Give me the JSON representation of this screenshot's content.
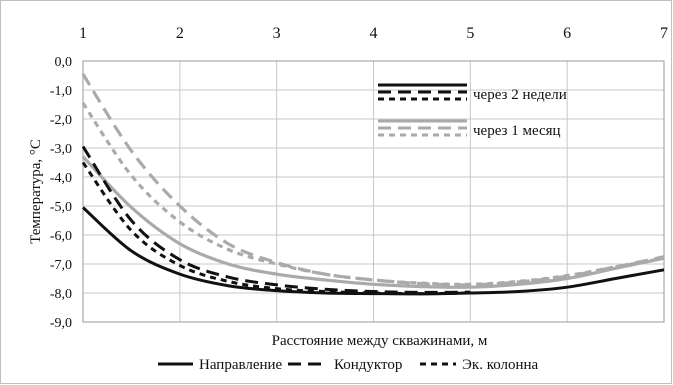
{
  "chart_data": {
    "type": "line",
    "title": "",
    "xlabel": "Расстояние между скважинами, м",
    "ylabel": "Температура, °С",
    "x_axis_position": "top",
    "xlim": [
      1,
      7
    ],
    "ylim": [
      -9,
      0
    ],
    "x_ticks": [
      "1",
      "2",
      "3",
      "4",
      "5",
      "6",
      "7"
    ],
    "y_ticks": [
      "0,0",
      "-1,0",
      "-2,0",
      "-3,0",
      "-4,0",
      "-5,0",
      "-6,0",
      "-7,0",
      "-8,0",
      "-9,0"
    ],
    "grid": true,
    "legend_bottom": [
      "Направление",
      "Кондуктор",
      "Эк. колонна"
    ],
    "legend_inset": [
      "через 2 недели",
      "через 1 месяц"
    ],
    "legend_inset_position": "top-center",
    "series": [
      {
        "name": "Направление",
        "group": "через 2 недели",
        "color": "#111111",
        "dash": "solid",
        "x": [
          1,
          1.5,
          2,
          2.5,
          3,
          3.5,
          4,
          4.5,
          5,
          5.5,
          6,
          6.5,
          7
        ],
        "y": [
          -5.05,
          -6.55,
          -7.35,
          -7.75,
          -7.92,
          -8.0,
          -8.02,
          -8.03,
          -8.0,
          -7.95,
          -7.8,
          -7.5,
          -7.2
        ]
      },
      {
        "name": "Кондуктор",
        "group": "через 2 недели",
        "color": "#111111",
        "dash": "long",
        "x": [
          1,
          1.5,
          2,
          2.5,
          3,
          3.5,
          4,
          4.5,
          5
        ],
        "y": [
          -2.95,
          -5.5,
          -6.85,
          -7.45,
          -7.72,
          -7.87,
          -7.95,
          -7.98,
          -7.97
        ]
      },
      {
        "name": "Эк. колонна",
        "group": "через 2 недели",
        "color": "#111111",
        "dash": "short",
        "x": [
          1,
          1.5,
          2,
          2.5,
          3,
          3.5,
          4,
          4.5,
          5
        ],
        "y": [
          -3.5,
          -5.85,
          -7.05,
          -7.6,
          -7.85,
          -7.95,
          -8.0,
          -8.02,
          -8.0
        ]
      },
      {
        "name": "Направление",
        "group": "через 1 месяц",
        "color": "#aaaaaa",
        "dash": "solid",
        "x": [
          1,
          1.5,
          2,
          2.5,
          3,
          3.5,
          4,
          4.5,
          5,
          5.5,
          6,
          6.5,
          7
        ],
        "y": [
          -3.3,
          -5.05,
          -6.3,
          -7.0,
          -7.35,
          -7.55,
          -7.7,
          -7.78,
          -7.8,
          -7.7,
          -7.5,
          -7.15,
          -6.8
        ]
      },
      {
        "name": "Кондуктор",
        "group": "через 1 месяц",
        "color": "#aaaaaa",
        "dash": "long",
        "x": [
          1,
          1.5,
          2,
          2.5,
          3,
          3.5,
          4,
          4.5,
          5,
          5.5,
          6,
          6.5,
          7
        ],
        "y": [
          -0.45,
          -3.1,
          -5.0,
          -6.3,
          -6.95,
          -7.35,
          -7.55,
          -7.68,
          -7.72,
          -7.62,
          -7.42,
          -7.1,
          -6.75
        ]
      },
      {
        "name": "Эк. колонна",
        "group": "через 1 месяц",
        "color": "#aaaaaa",
        "dash": "short",
        "x": [
          1,
          1.5,
          2,
          2.5,
          3,
          3.5,
          4,
          4.5,
          5,
          5.5,
          6,
          6.5,
          7
        ],
        "y": [
          -1.45,
          -3.95,
          -5.55,
          -6.5,
          -7.0,
          -7.35,
          -7.55,
          -7.66,
          -7.7,
          -7.6,
          -7.4,
          -7.1,
          -6.8
        ]
      }
    ]
  }
}
